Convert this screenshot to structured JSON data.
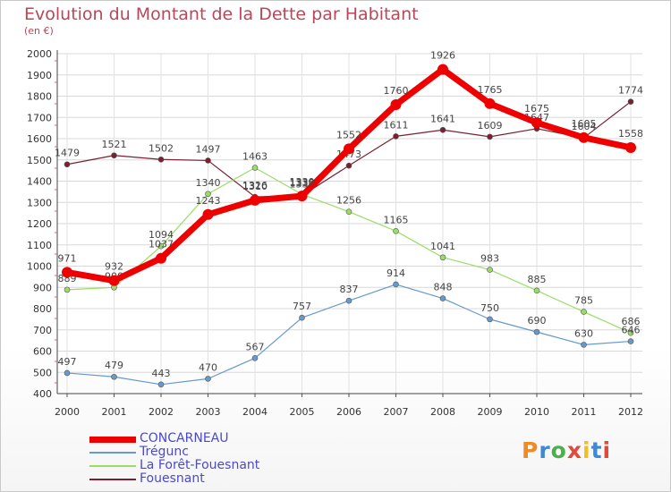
{
  "header": {
    "title": "Evolution du Montant de la Dette par Habitant",
    "subtitle": "(en €)"
  },
  "logo": {
    "text": "Proxiti",
    "colors": [
      "#f08a24",
      "#3a8ad6",
      "#4ab04a",
      "#e04a3a",
      "#f0c020",
      "#3a8ad6",
      "#e04a3a"
    ]
  },
  "chart_data": {
    "type": "line",
    "x": [
      "2000",
      "2001",
      "2002",
      "2003",
      "2004",
      "2005",
      "2006",
      "2007",
      "2008",
      "2009",
      "2010",
      "2011",
      "2012"
    ],
    "ylim": [
      400,
      2000
    ],
    "yticks": [
      "400",
      "500",
      "600",
      "700",
      "800",
      "900",
      "1000",
      "1100",
      "1200",
      "1300",
      "1400",
      "1500",
      "1600",
      "1700",
      "1800",
      "1900",
      "2000"
    ],
    "grid": true,
    "legend_position": "bottom-left",
    "series": [
      {
        "name": "Fouesnant",
        "color": "#7a2030",
        "width": 1.2,
        "values": [
          1479,
          1521,
          1502,
          1497,
          1326,
          1332,
          1473,
          1611,
          1641,
          1609,
          1647,
          1604,
          1774
        ],
        "labels": [
          "1479",
          "1521",
          "1502",
          "1497",
          "1326",
          "1332",
          "1473",
          "1611",
          "1641",
          "1609",
          "1647",
          "1604",
          "1774"
        ]
      },
      {
        "name": "La Forêt-Fouesnant",
        "color": "#99dd66",
        "width": 1.2,
        "values": [
          889,
          900,
          1094,
          1340,
          1463,
          1338,
          1256,
          1165,
          1041,
          983,
          885,
          785,
          686
        ],
        "labels": [
          "889",
          "900",
          "1094",
          "1340",
          "1463",
          "1338",
          "1256",
          "1165",
          "1041",
          "983",
          "885",
          "785",
          "686"
        ]
      },
      {
        "name": "Trégunc",
        "color": "#6699cc",
        "width": 1.2,
        "values": [
          497,
          479,
          443,
          470,
          567,
          757,
          837,
          914,
          848,
          750,
          690,
          630,
          646
        ],
        "labels": [
          "497",
          "479",
          "443",
          "470",
          "567",
          "757",
          "837",
          "914",
          "848",
          "750",
          "690",
          "630",
          "646"
        ]
      },
      {
        "name": "CONCARNEAU",
        "color": "#ee0000",
        "width": 7,
        "values": [
          971,
          932,
          1037,
          1243,
          1310,
          1330,
          1552,
          1760,
          1926,
          1765,
          1675,
          1605,
          1558
        ],
        "labels": [
          "971",
          "932",
          "1037",
          "1243",
          "1310",
          "1330",
          "1552",
          "1760",
          "1926",
          "1765",
          "1675",
          "1605",
          "1558"
        ]
      }
    ],
    "legend": [
      {
        "name": "CONCARNEAU",
        "color": "#ee0000",
        "width": 7
      },
      {
        "name": "Trégunc",
        "color": "#6699cc",
        "width": 1.5
      },
      {
        "name": "La Forêt-Fouesnant",
        "color": "#99dd66",
        "width": 1.5
      },
      {
        "name": "Fouesnant",
        "color": "#7a2030",
        "width": 1.5
      }
    ]
  }
}
